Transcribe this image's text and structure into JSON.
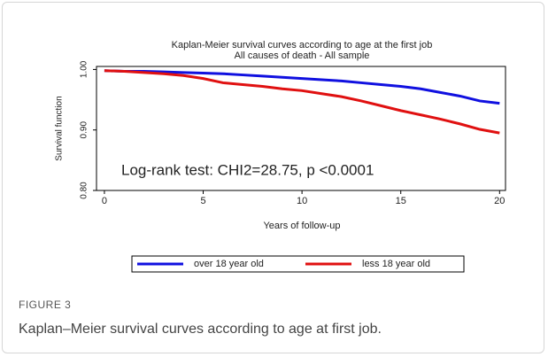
{
  "chart_data": {
    "type": "line",
    "title": "Kaplan-Meier survival curves according to age at the first job",
    "subtitle": "All causes of death - All sample",
    "xlabel": "Years of follow-up",
    "ylabel": "Survival function",
    "annotation": "Log-rank test: CHI2=28.75, p <0.0001",
    "x": [
      0,
      1,
      2,
      3,
      4,
      5,
      6,
      7,
      8,
      9,
      10,
      11,
      12,
      13,
      14,
      15,
      16,
      17,
      18,
      19,
      20
    ],
    "series": [
      {
        "name": "over 18 year old",
        "color": "#1010e0",
        "values": [
          0.998,
          0.997,
          0.997,
          0.996,
          0.995,
          0.994,
          0.993,
          0.991,
          0.989,
          0.987,
          0.985,
          0.983,
          0.981,
          0.978,
          0.975,
          0.972,
          0.968,
          0.962,
          0.956,
          0.948,
          0.944
        ]
      },
      {
        "name": "less 18 year old",
        "color": "#e01010",
        "values": [
          0.998,
          0.997,
          0.995,
          0.993,
          0.99,
          0.985,
          0.978,
          0.975,
          0.972,
          0.968,
          0.965,
          0.96,
          0.955,
          0.948,
          0.94,
          0.932,
          0.925,
          0.918,
          0.91,
          0.901,
          0.895
        ]
      }
    ],
    "xlim": [
      -0.4,
      20.3
    ],
    "ylim": [
      0.8,
      1.005
    ],
    "xticks": [
      0,
      5,
      10,
      15,
      20
    ],
    "yticks": [
      {
        "value": 1,
        "label": "1.00"
      },
      {
        "value": 0.9,
        "label": "0.90"
      },
      {
        "value": 0.8,
        "label": "0.80"
      }
    ],
    "legend": "bottom"
  },
  "figure": {
    "label": "FIGURE 3",
    "caption": "Kaplan–Meier survival curves according to age at first job."
  }
}
